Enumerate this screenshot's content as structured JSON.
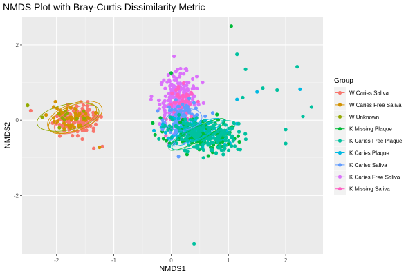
{
  "chart_data": {
    "type": "scatter",
    "title": "NMDS Plot with Bray-Curtis Dissimilarity Metric",
    "xlabel": "NMDS1",
    "ylabel": "NMDS2",
    "xlim": [
      -2.6,
      2.65
    ],
    "ylim": [
      -3.55,
      2.75
    ],
    "x_ticks": [
      -2,
      -1,
      0,
      1,
      2
    ],
    "y_ticks": [
      -2,
      0,
      2
    ],
    "grid": true,
    "legend": {
      "title": "Group",
      "position": "right"
    },
    "series": [
      {
        "name": "W Caries Saliva",
        "color": "#F8766D",
        "center": [
          -1.65,
          0.05
        ],
        "points": [
          [
            -2.45,
            0.25
          ],
          [
            -1.35,
            -0.75
          ],
          [
            -1.2,
            -0.7
          ],
          [
            -1.9,
            -0.15
          ],
          [
            -1.55,
            -0.5
          ]
        ],
        "ellipses": [
          {
            "cx": -1.65,
            "cy": 0.02,
            "rx": 0.42,
            "ry": 0.3,
            "angle": -25
          }
        ]
      },
      {
        "name": "W Caries Free Saliva",
        "color": "#D39200",
        "center": [
          -1.7,
          0.08
        ],
        "points": [
          [
            -1.25,
            -0.72
          ],
          [
            -2.05,
            0.35
          ],
          [
            -1.9,
            0.2
          ]
        ],
        "ellipses": [
          {
            "cx": -1.72,
            "cy": 0.05,
            "rx": 0.45,
            "ry": 0.32,
            "angle": -25
          },
          {
            "cx": -1.68,
            "cy": 0.08,
            "rx": 0.5,
            "ry": 0.36,
            "angle": -20
          }
        ]
      },
      {
        "name": "W Unknown",
        "color": "#93AA00",
        "center": [
          -1.8,
          0.1
        ],
        "points": [
          [
            -2.25,
            0.08
          ],
          [
            -1.95,
            -0.2
          ]
        ],
        "ellipses": [
          {
            "cx": -1.8,
            "cy": 0.08,
            "rx": 0.55,
            "ry": 0.34,
            "angle": -12
          }
        ]
      },
      {
        "name": "K Missing Plaque",
        "color": "#00BA38",
        "center": [
          0.5,
          -0.4
        ],
        "points": [
          [
            0.0,
            1.25
          ],
          [
            1.05,
            2.5
          ],
          [
            0.65,
            -0.95
          ],
          [
            0.8,
            0.15
          ]
        ],
        "ellipses": [
          {
            "cx": 0.45,
            "cy": -0.38,
            "rx": 0.55,
            "ry": 0.18,
            "angle": -28
          }
        ]
      },
      {
        "name": "K Caries Free Plaque",
        "color": "#00C19F",
        "center": [
          0.55,
          -0.4
        ],
        "points": [
          [
            1.15,
            1.75
          ],
          [
            1.3,
            1.35
          ],
          [
            2.2,
            1.42
          ],
          [
            2.45,
            0.35
          ],
          [
            2.3,
            0.1
          ],
          [
            2.0,
            -0.25
          ],
          [
            2.0,
            -0.62
          ],
          [
            0.4,
            -3.28
          ],
          [
            1.6,
            0.85
          ],
          [
            1.85,
            0.8
          ],
          [
            1.25,
            0.6
          ],
          [
            1.0,
            -0.55
          ]
        ],
        "ellipses": [
          {
            "cx": 0.5,
            "cy": -0.45,
            "rx": 0.52,
            "ry": 0.2,
            "angle": -22
          },
          {
            "cx": 0.55,
            "cy": -0.4,
            "rx": 0.6,
            "ry": 0.25,
            "angle": -20
          }
        ]
      },
      {
        "name": "K Caries Plaque",
        "color": "#00B9E3",
        "center": [
          0.45,
          -0.35
        ],
        "points": [
          [
            2.25,
            0.82
          ],
          [
            1.5,
            0.75
          ],
          [
            1.15,
            0.55
          ],
          [
            -0.3,
            -0.28
          ]
        ],
        "ellipses": [
          {
            "cx": 0.42,
            "cy": -0.32,
            "rx": 0.5,
            "ry": 0.2,
            "angle": -25
          }
        ]
      },
      {
        "name": "K Caries Saliva",
        "color": "#619CFF",
        "center": [
          0.2,
          0.05
        ],
        "points": [
          [
            -0.15,
            -0.25
          ],
          [
            0.05,
            -0.62
          ]
        ],
        "ellipses": [
          {
            "cx": 0.22,
            "cy": 0.02,
            "rx": 0.32,
            "ry": 0.28,
            "angle": -10
          }
        ]
      },
      {
        "name": "K Caries Free Saliva",
        "color": "#DB72FB",
        "center": [
          0.1,
          0.55
        ],
        "points": [
          [
            -0.35,
            0.55
          ],
          [
            0.55,
            1.0
          ],
          [
            -0.05,
            1.2
          ]
        ],
        "ellipses": []
      },
      {
        "name": "K Missing Saliva",
        "color": "#FF61C3",
        "center": [
          0.15,
          0.3
        ],
        "points": [
          [
            0.35,
            0.1
          ]
        ],
        "ellipses": []
      }
    ],
    "clouds": [
      {
        "series": 0,
        "n": 120,
        "cx": -1.62,
        "cy": 0.0,
        "sx": 0.18,
        "sy": 0.2,
        "rot": -0.55
      },
      {
        "series": 1,
        "n": 45,
        "cx": -1.72,
        "cy": 0.08,
        "sx": 0.2,
        "sy": 0.2,
        "rot": -0.5
      },
      {
        "series": 2,
        "n": 12,
        "cx": -1.85,
        "cy": 0.12,
        "sx": 0.2,
        "sy": 0.12,
        "rot": -0.2
      },
      {
        "series": 7,
        "n": 220,
        "cx": 0.12,
        "cy": 0.55,
        "sx": 0.16,
        "sy": 0.35,
        "rot": 0
      },
      {
        "series": 8,
        "n": 60,
        "cx": 0.18,
        "cy": 0.3,
        "sx": 0.12,
        "sy": 0.28,
        "rot": 0
      },
      {
        "series": 6,
        "n": 110,
        "cx": 0.22,
        "cy": 0.0,
        "sx": 0.16,
        "sy": 0.24,
        "rot": 0
      },
      {
        "series": 5,
        "n": 90,
        "cx": 0.45,
        "cy": -0.3,
        "sx": 0.3,
        "sy": 0.2,
        "rot": -0.3
      },
      {
        "series": 3,
        "n": 110,
        "cx": 0.5,
        "cy": -0.38,
        "sx": 0.3,
        "sy": 0.2,
        "rot": -0.3
      },
      {
        "series": 4,
        "n": 200,
        "cx": 0.55,
        "cy": -0.4,
        "sx": 0.32,
        "sy": 0.22,
        "rot": -0.25
      }
    ]
  }
}
